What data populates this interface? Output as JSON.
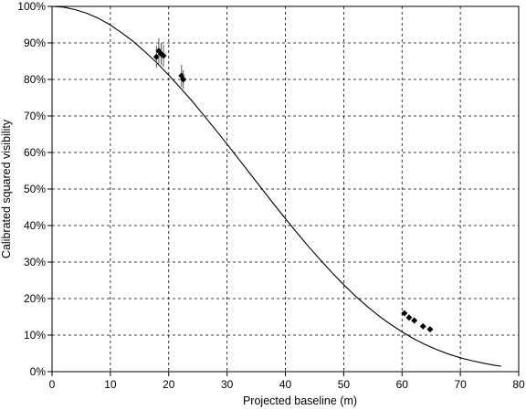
{
  "chart_data": {
    "type": "scatter",
    "title": "",
    "xlabel": "Projected baseline (m)",
    "ylabel": "Calibrated squared visibility",
    "xlim": [
      0,
      80
    ],
    "ylim": [
      0,
      1
    ],
    "x_ticks": [
      0,
      10,
      20,
      30,
      40,
      50,
      60,
      70,
      80
    ],
    "x_tick_labels": [
      "0",
      "10",
      "20",
      "30",
      "40",
      "50",
      "60",
      "70",
      "80"
    ],
    "y_ticks": [
      0,
      0.1,
      0.2,
      0.3,
      0.4,
      0.5,
      0.6,
      0.7,
      0.8,
      0.9,
      1.0
    ],
    "y_tick_labels": [
      "0%",
      "10%",
      "20%",
      "30%",
      "40%",
      "50%",
      "60%",
      "70%",
      "80%",
      "90%",
      "100%"
    ],
    "grid": true,
    "grid_style": "dashed",
    "legend": false,
    "series": [
      {
        "kind": "measurements",
        "marker": "diamond",
        "color": "#000000",
        "points": [
          {
            "x": 17.9,
            "y": 0.862,
            "yerr": 0.03,
            "xerr": 0.3
          },
          {
            "x": 18.3,
            "y": 0.878,
            "yerr": 0.035,
            "xerr": 0.3
          },
          {
            "x": 18.7,
            "y": 0.87,
            "yerr": 0.03,
            "xerr": 0.3
          },
          {
            "x": 19.1,
            "y": 0.865,
            "yerr": 0.03,
            "xerr": 0.3
          },
          {
            "x": 22.2,
            "y": 0.81,
            "yerr": 0.03,
            "xerr": 0.3
          },
          {
            "x": 22.5,
            "y": 0.8,
            "yerr": 0.025,
            "xerr": 0.3
          },
          {
            "x": 60.4,
            "y": 0.16,
            "yerr": 0.006,
            "xerr": 0.2
          },
          {
            "x": 61.2,
            "y": 0.148,
            "yerr": 0.006,
            "xerr": 0.2
          },
          {
            "x": 62.1,
            "y": 0.14,
            "yerr": 0.006,
            "xerr": 0.2
          },
          {
            "x": 63.6,
            "y": 0.124,
            "yerr": 0.006,
            "xerr": 0.2
          },
          {
            "x": 64.8,
            "y": 0.116,
            "yerr": 0.006,
            "xerr": 0.2
          }
        ]
      },
      {
        "kind": "model-curve",
        "line": "solid",
        "color": "#000000",
        "x": [
          0,
          2,
          4,
          6,
          8,
          10,
          12,
          14,
          16,
          18,
          20,
          22,
          24,
          26,
          28,
          30,
          32,
          34,
          36,
          38,
          40,
          42,
          44,
          46,
          48,
          50,
          52,
          54,
          56,
          58,
          60,
          62,
          64,
          66,
          68,
          70,
          72,
          74,
          76,
          77
        ],
        "y": [
          1.0,
          0.998,
          0.991,
          0.981,
          0.967,
          0.949,
          0.927,
          0.903,
          0.875,
          0.845,
          0.812,
          0.777,
          0.741,
          0.702,
          0.663,
          0.623,
          0.582,
          0.541,
          0.5,
          0.459,
          0.419,
          0.38,
          0.342,
          0.306,
          0.271,
          0.238,
          0.207,
          0.179,
          0.153,
          0.13,
          0.109,
          0.09,
          0.074,
          0.06,
          0.048,
          0.038,
          0.03,
          0.023,
          0.017,
          0.015
        ]
      }
    ]
  },
  "colors": {
    "axis": "#000000",
    "grid": "#000000",
    "background": "#ffffff"
  }
}
